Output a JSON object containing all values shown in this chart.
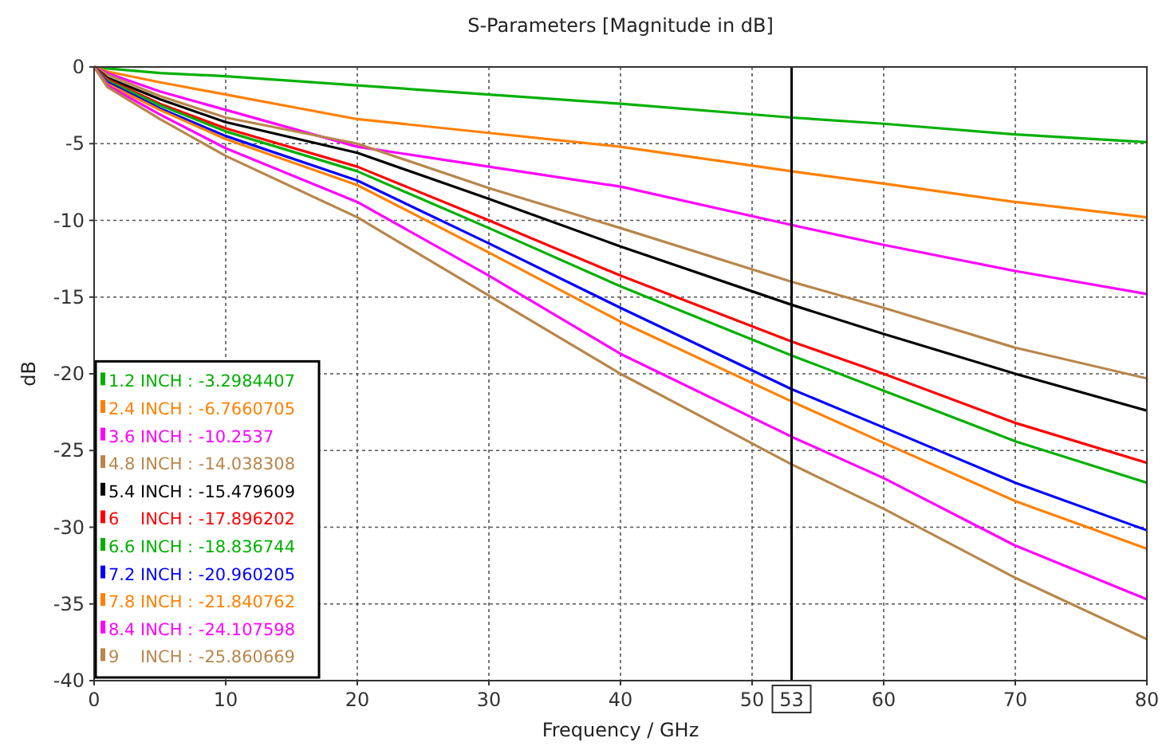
{
  "chart_data": {
    "type": "line",
    "title": "S-Parameters [Magnitude in dB]",
    "xlabel": "Frequency / GHz",
    "ylabel": "dB",
    "x": [
      0,
      1,
      5,
      10,
      20,
      30,
      40,
      53,
      60,
      70,
      80
    ],
    "xlim": [
      0,
      80
    ],
    "xticks": [
      0,
      10,
      20,
      30,
      40,
      50,
      60,
      70,
      80
    ],
    "ylim": [
      -40,
      0
    ],
    "yticks": [
      -40,
      -35,
      -30,
      -25,
      -20,
      -15,
      -10,
      -5,
      0
    ],
    "grid": true,
    "legend": "bottom left",
    "line_style": "solid",
    "marker": "none",
    "ref_lines": [
      {
        "axis": "x",
        "value": 53,
        "label": "53",
        "color": "#000000"
      }
    ],
    "series": [
      {
        "name": "1.2 INCH : -3.2984407",
        "color": "#00b000",
        "values": [
          0,
          -0.1,
          -0.4,
          -0.6,
          -1.2,
          -1.8,
          -2.4,
          -3.3,
          -3.7,
          -4.4,
          -4.9
        ]
      },
      {
        "name": "2.4 INCH : -6.7660705",
        "color": "#ff8000",
        "values": [
          0,
          -0.3,
          -1.0,
          -1.8,
          -3.4,
          -4.3,
          -5.2,
          -6.8,
          -7.6,
          -8.8,
          -9.8
        ]
      },
      {
        "name": "3.6 INCH : -10.2537",
        "color": "#ff00ff",
        "values": [
          0,
          -0.4,
          -1.6,
          -2.8,
          -5.2,
          -6.5,
          -7.8,
          -10.3,
          -11.6,
          -13.3,
          -14.8
        ]
      },
      {
        "name": "4.8 INCH : -14.038308",
        "color": "#b8864b",
        "values": [
          0,
          -0.5,
          -1.9,
          -3.3,
          -5.0,
          -7.9,
          -10.5,
          -14.0,
          -15.7,
          -18.3,
          -20.3
        ]
      },
      {
        "name": "5.4 INCH : -15.479609",
        "color": "#000000",
        "values": [
          0,
          -0.7,
          -2.1,
          -3.6,
          -5.6,
          -8.6,
          -11.7,
          -15.5,
          -17.4,
          -20.0,
          -22.4
        ]
      },
      {
        "name": "6    INCH : -17.896202",
        "color": "#ff0000",
        "values": [
          0,
          -0.8,
          -2.4,
          -4.0,
          -6.5,
          -10.0,
          -13.6,
          -17.9,
          -20.0,
          -23.2,
          -25.8
        ]
      },
      {
        "name": "6.6 INCH : -18.836744",
        "color": "#00b000",
        "values": [
          0,
          -0.9,
          -2.5,
          -4.2,
          -6.8,
          -10.5,
          -14.3,
          -18.8,
          -21.1,
          -24.4,
          -27.1
        ]
      },
      {
        "name": "7.2 INCH : -20.960205",
        "color": "#0000ff",
        "values": [
          0,
          -1.0,
          -2.7,
          -4.5,
          -7.4,
          -11.5,
          -15.7,
          -21.0,
          -23.5,
          -27.1,
          -30.2
        ]
      },
      {
        "name": "7.8 INCH : -21.840762",
        "color": "#ff8000",
        "values": [
          0,
          -1.1,
          -2.8,
          -4.7,
          -7.7,
          -12.1,
          -16.6,
          -21.8,
          -24.5,
          -28.3,
          -31.4
        ]
      },
      {
        "name": "8.4 INCH : -24.107598",
        "color": "#ff00ff",
        "values": [
          0,
          -1.2,
          -3.1,
          -5.3,
          -8.8,
          -13.6,
          -18.7,
          -24.1,
          -26.8,
          -31.2,
          -34.7
        ]
      },
      {
        "name": "9    INCH : -25.860669",
        "color": "#b8864b",
        "values": [
          0,
          -1.3,
          -3.4,
          -5.8,
          -9.8,
          -14.9,
          -20.0,
          -25.9,
          -28.8,
          -33.3,
          -37.3
        ]
      }
    ]
  }
}
